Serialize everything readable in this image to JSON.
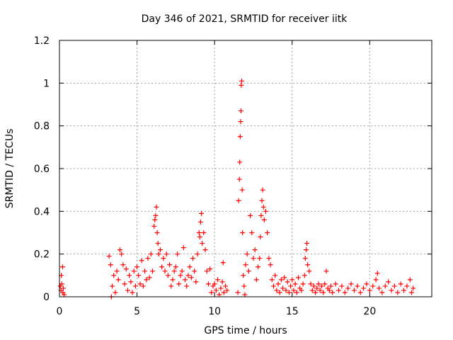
{
  "chart_data": {
    "type": "scatter",
    "title": "Day 346 of 2021, SRMTID for receiver iitk",
    "xlabel": "GPS time / hours",
    "ylabel": "SRMTID / TECUs",
    "xlim": [
      0,
      24
    ],
    "ylim": [
      0,
      1.2
    ],
    "xticks": [
      0,
      5,
      10,
      15,
      20
    ],
    "xtick_labels": [
      "0",
      "5",
      "10",
      "15",
      "20"
    ],
    "yticks": [
      0,
      0.2,
      0.4,
      0.6,
      0.8,
      1.0,
      1.2
    ],
    "ytick_labels": [
      "0",
      "0.2",
      "0.4",
      "0.6",
      "0.8",
      "1",
      "1.2"
    ],
    "grid": true,
    "marker": "+",
    "color": "#ff0000",
    "series": [
      {
        "name": "SRMTID",
        "points": [
          [
            0.05,
            0.05
          ],
          [
            0.1,
            0.03
          ],
          [
            0.12,
            0.1
          ],
          [
            0.15,
            0.06
          ],
          [
            0.2,
            0.14
          ],
          [
            0.22,
            0.02
          ],
          [
            0.25,
            0.04
          ],
          [
            0.3,
            0.01
          ],
          [
            3.2,
            0.19
          ],
          [
            3.3,
            0.15
          ],
          [
            3.35,
            0.0
          ],
          [
            3.4,
            0.05
          ],
          [
            3.5,
            0.1
          ],
          [
            3.6,
            0.02
          ],
          [
            3.7,
            0.12
          ],
          [
            3.8,
            0.08
          ],
          [
            3.9,
            0.22
          ],
          [
            4.0,
            0.2
          ],
          [
            4.1,
            0.15
          ],
          [
            4.2,
            0.06
          ],
          [
            4.3,
            0.13
          ],
          [
            4.4,
            0.03
          ],
          [
            4.5,
            0.1
          ],
          [
            4.6,
            0.07
          ],
          [
            4.7,
            0.02
          ],
          [
            4.8,
            0.12
          ],
          [
            4.9,
            0.05
          ],
          [
            5.0,
            0.14
          ],
          [
            5.1,
            0.1
          ],
          [
            5.2,
            0.06
          ],
          [
            5.3,
            0.17
          ],
          [
            5.4,
            0.05
          ],
          [
            5.5,
            0.12
          ],
          [
            5.6,
            0.08
          ],
          [
            5.7,
            0.18
          ],
          [
            5.8,
            0.09
          ],
          [
            5.9,
            0.2
          ],
          [
            6.0,
            0.12
          ],
          [
            6.1,
            0.33
          ],
          [
            6.15,
            0.36
          ],
          [
            6.2,
            0.38
          ],
          [
            6.25,
            0.42
          ],
          [
            6.3,
            0.3
          ],
          [
            6.35,
            0.25
          ],
          [
            6.4,
            0.2
          ],
          [
            6.5,
            0.22
          ],
          [
            6.6,
            0.14
          ],
          [
            6.7,
            0.18
          ],
          [
            6.8,
            0.12
          ],
          [
            6.9,
            0.2
          ],
          [
            7.0,
            0.1
          ],
          [
            7.1,
            0.15
          ],
          [
            7.2,
            0.05
          ],
          [
            7.3,
            0.08
          ],
          [
            7.4,
            0.12
          ],
          [
            7.5,
            0.14
          ],
          [
            7.6,
            0.2
          ],
          [
            7.7,
            0.06
          ],
          [
            7.8,
            0.1
          ],
          [
            7.9,
            0.12
          ],
          [
            8.0,
            0.23
          ],
          [
            8.1,
            0.08
          ],
          [
            8.2,
            0.05
          ],
          [
            8.3,
            0.1
          ],
          [
            8.4,
            0.14
          ],
          [
            8.5,
            0.09
          ],
          [
            8.6,
            0.18
          ],
          [
            8.7,
            0.12
          ],
          [
            8.8,
            0.07
          ],
          [
            8.9,
            0.2
          ],
          [
            9.0,
            0.3
          ],
          [
            9.05,
            0.28
          ],
          [
            9.1,
            0.35
          ],
          [
            9.15,
            0.39
          ],
          [
            9.2,
            0.25
          ],
          [
            9.3,
            0.3
          ],
          [
            9.4,
            0.22
          ],
          [
            9.5,
            0.12
          ],
          [
            9.6,
            0.06
          ],
          [
            9.7,
            0.13
          ],
          [
            9.8,
            0.02
          ],
          [
            9.9,
            0.05
          ],
          [
            10.0,
            0.06
          ],
          [
            10.1,
            0.03
          ],
          [
            10.2,
            0.08
          ],
          [
            10.3,
            0.01
          ],
          [
            10.4,
            0.04
          ],
          [
            10.5,
            0.07
          ],
          [
            10.55,
            0.16
          ],
          [
            10.6,
            0.02
          ],
          [
            10.7,
            0.05
          ],
          [
            10.8,
            0.03
          ],
          [
            11.5,
            0.02
          ],
          [
            11.55,
            0.45
          ],
          [
            11.6,
            0.55
          ],
          [
            11.62,
            0.63
          ],
          [
            11.65,
            0.75
          ],
          [
            11.68,
            0.82
          ],
          [
            11.7,
            0.87
          ],
          [
            11.72,
            0.99
          ],
          [
            11.75,
            1.01
          ],
          [
            11.78,
            0.5
          ],
          [
            11.8,
            0.3
          ],
          [
            11.85,
            0.1
          ],
          [
            11.9,
            0.05
          ],
          [
            11.95,
            0.01
          ],
          [
            12.0,
            0.15
          ],
          [
            12.1,
            0.2
          ],
          [
            12.2,
            0.12
          ],
          [
            12.3,
            0.38
          ],
          [
            12.4,
            0.3
          ],
          [
            12.5,
            0.18
          ],
          [
            12.6,
            0.22
          ],
          [
            12.7,
            0.08
          ],
          [
            12.8,
            0.14
          ],
          [
            12.9,
            0.18
          ],
          [
            12.95,
            0.28
          ],
          [
            13.0,
            0.38
          ],
          [
            13.05,
            0.45
          ],
          [
            13.1,
            0.5
          ],
          [
            13.15,
            0.42
          ],
          [
            13.2,
            0.36
          ],
          [
            13.3,
            0.4
          ],
          [
            13.4,
            0.3
          ],
          [
            13.5,
            0.18
          ],
          [
            13.6,
            0.15
          ],
          [
            13.7,
            0.08
          ],
          [
            13.8,
            0.05
          ],
          [
            13.9,
            0.1
          ],
          [
            14.0,
            0.03
          ],
          [
            14.1,
            0.06
          ],
          [
            14.2,
            0.02
          ],
          [
            14.3,
            0.08
          ],
          [
            14.4,
            0.04
          ],
          [
            14.5,
            0.09
          ],
          [
            14.6,
            0.03
          ],
          [
            14.7,
            0.07
          ],
          [
            14.8,
            0.02
          ],
          [
            14.9,
            0.05
          ],
          [
            15.0,
            0.08
          ],
          [
            15.1,
            0.03
          ],
          [
            15.2,
            0.06
          ],
          [
            15.3,
            0.02
          ],
          [
            15.4,
            0.09
          ],
          [
            15.5,
            0.04
          ],
          [
            15.6,
            0.03
          ],
          [
            15.7,
            0.06
          ],
          [
            15.8,
            0.1
          ],
          [
            15.85,
            0.18
          ],
          [
            15.9,
            0.22
          ],
          [
            15.95,
            0.25
          ],
          [
            16.0,
            0.15
          ],
          [
            16.1,
            0.12
          ],
          [
            16.2,
            0.06
          ],
          [
            16.3,
            0.03
          ],
          [
            16.4,
            0.05
          ],
          [
            16.5,
            0.02
          ],
          [
            16.6,
            0.04
          ],
          [
            16.7,
            0.06
          ],
          [
            16.8,
            0.03
          ],
          [
            16.9,
            0.05
          ],
          [
            17.0,
            0.02
          ],
          [
            17.1,
            0.06
          ],
          [
            17.2,
            0.12
          ],
          [
            17.3,
            0.04
          ],
          [
            17.4,
            0.03
          ],
          [
            17.5,
            0.05
          ],
          [
            17.6,
            0.02
          ],
          [
            17.8,
            0.06
          ],
          [
            18.0,
            0.03
          ],
          [
            18.2,
            0.05
          ],
          [
            18.4,
            0.02
          ],
          [
            18.6,
            0.04
          ],
          [
            18.8,
            0.06
          ],
          [
            19.0,
            0.03
          ],
          [
            19.2,
            0.05
          ],
          [
            19.4,
            0.02
          ],
          [
            19.6,
            0.04
          ],
          [
            19.8,
            0.06
          ],
          [
            20.0,
            0.03
          ],
          [
            20.2,
            0.05
          ],
          [
            20.4,
            0.08
          ],
          [
            20.5,
            0.11
          ],
          [
            20.6,
            0.04
          ],
          [
            20.8,
            0.02
          ],
          [
            21.0,
            0.05
          ],
          [
            21.2,
            0.07
          ],
          [
            21.4,
            0.03
          ],
          [
            21.6,
            0.05
          ],
          [
            21.8,
            0.02
          ],
          [
            22.0,
            0.06
          ],
          [
            22.2,
            0.03
          ],
          [
            22.4,
            0.05
          ],
          [
            22.6,
            0.08
          ],
          [
            22.7,
            0.02
          ],
          [
            22.8,
            0.04
          ]
        ]
      }
    ]
  }
}
